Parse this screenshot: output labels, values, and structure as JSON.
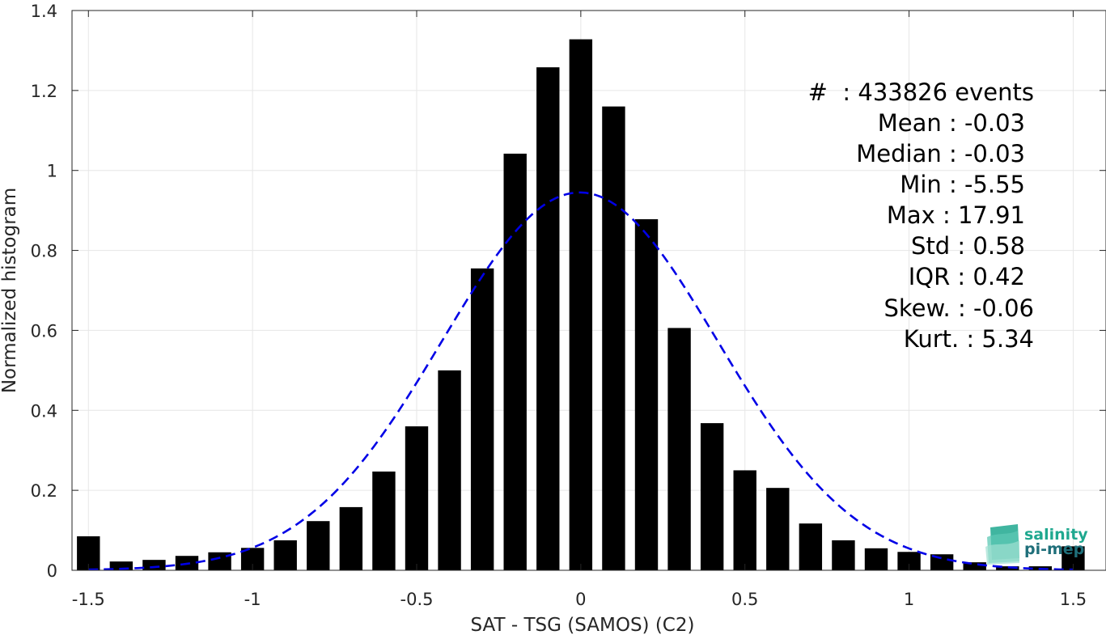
{
  "chart_data": {
    "type": "bar",
    "xlabel": "SAT - TSG (SAMOS) (C2)",
    "ylabel": "Normalized histogram",
    "xlim": [
      -1.55,
      1.6
    ],
    "ylim": [
      0,
      1.4
    ],
    "xticks": [
      -1.5,
      -1,
      -0.5,
      0,
      0.5,
      1,
      1.5
    ],
    "xtick_labels": [
      "-1.5",
      "-1",
      "-0.5",
      "0",
      "0.5",
      "1",
      "1.5"
    ],
    "yticks": [
      0,
      0.2,
      0.4,
      0.6,
      0.8,
      1,
      1.2,
      1.4
    ],
    "ytick_labels": [
      "0",
      "0.2",
      "0.4",
      "0.6",
      "0.8",
      "1",
      "1.2",
      "1.4"
    ],
    "grid": true,
    "bar_color": "#000000",
    "bar_width": 0.07,
    "x": [
      -1.5,
      -1.4,
      -1.3,
      -1.2,
      -1.1,
      -1.0,
      -0.9,
      -0.8,
      -0.7,
      -0.6,
      -0.5,
      -0.4,
      -0.3,
      -0.2,
      -0.1,
      0.0,
      0.1,
      0.2,
      0.3,
      0.4,
      0.5,
      0.6,
      0.7,
      0.8,
      0.9,
      1.0,
      1.1,
      1.2,
      1.3,
      1.4,
      1.5
    ],
    "values": [
      0.085,
      0.022,
      0.026,
      0.036,
      0.045,
      0.056,
      0.075,
      0.123,
      0.158,
      0.247,
      0.36,
      0.5,
      0.755,
      1.042,
      1.258,
      1.328,
      1.16,
      0.878,
      0.606,
      0.368,
      0.25,
      0.206,
      0.117,
      0.075,
      0.055,
      0.046,
      0.04,
      0.02,
      0.01,
      0.01,
      0.06
    ],
    "fit_curve": {
      "style": "dashed",
      "color": "#0000e6",
      "mean": -0.003,
      "std": 0.42,
      "peak": 0.945,
      "x_range": [
        -1.5,
        1.5
      ]
    },
    "annotation_color": "#000000",
    "annotations": [
      "#  : 433826 events",
      "Mean : -0.03",
      "Median : -0.03",
      "Min : -5.55",
      "Max : 17.91",
      "Std : 0.58",
      "IQR : 0.42",
      "Skew. : -0.06",
      "Kurt. : 5.34"
    ]
  },
  "logo": {
    "line1": "salinity",
    "line2": "pi-mep",
    "color": "#1fa88f"
  }
}
